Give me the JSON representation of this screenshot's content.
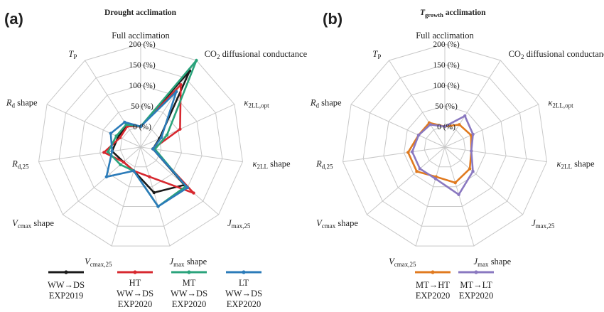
{
  "panels": [
    {
      "label": "(a)",
      "title": "Drought acclimation",
      "title_italic": ""
    },
    {
      "label": "(b)",
      "title": " acclimation",
      "title_italic": "T",
      "title_sub": "growth"
    }
  ],
  "axes_labels": [
    {
      "main": "Full acclimation"
    },
    {
      "main": "CO",
      "sub": "2",
      "rest": " diffusional conductance"
    },
    {
      "italic": "κ",
      "sub": "2LL,opt"
    },
    {
      "italic": "κ",
      "sub": "2LL",
      "rest": " shape"
    },
    {
      "italic": "J",
      "sub": "max,25"
    },
    {
      "italic": "J",
      "sub": "max",
      "rest": " shape"
    },
    {
      "italic": "V",
      "sub": "cmax,25"
    },
    {
      "italic": "V",
      "sub": "cmax",
      "rest": " shape"
    },
    {
      "italic": "R",
      "sub": "d,25"
    },
    {
      "italic": "R",
      "sub": "d",
      "rest": " shape"
    },
    {
      "italic": "T",
      "sub": "P"
    }
  ],
  "tick_labels": [
    "0 (%)",
    "50 (%)",
    "100 (%)",
    "150 (%)",
    "200 (%)"
  ],
  "legend": [
    {
      "panel": 0,
      "line1": "",
      "line2": "WW→DS",
      "line3": "EXP2019",
      "color": "#1a1a1a"
    },
    {
      "panel": 0,
      "line1": "HT",
      "line2": "WW→DS",
      "line3": "EXP2020",
      "color": "#d7282f"
    },
    {
      "panel": 0,
      "line1": "MT",
      "line2": "WW→DS",
      "line3": "EXP2020",
      "color": "#2aa37b"
    },
    {
      "panel": 0,
      "line1": "LT",
      "line2": "WW→DS",
      "line3": "EXP2020",
      "color": "#2b7bb9"
    },
    {
      "panel": 1,
      "line1": "",
      "line2": "MT→HT",
      "line3": "EXP2020",
      "color": "#e07a1f"
    },
    {
      "panel": 1,
      "line1": "",
      "line2": "MT→LT",
      "line3": "EXP2020",
      "color": "#8a78c0"
    }
  ],
  "chart_data": [
    {
      "type": "radar",
      "title": "Drought acclimation",
      "categories": [
        "Full acclimation",
        "CO2 diffusional conductance",
        "κ2LL,opt",
        "κ2LL shape",
        "Jmax,25",
        "Jmax shape",
        "Vcmax,25",
        "Vcmax shape",
        "Rd,25",
        "Rd shape",
        "TP"
      ],
      "rlim": [
        -50,
        200
      ],
      "rticks": [
        0,
        50,
        100,
        150,
        200
      ],
      "grid": true,
      "series": [
        {
          "name": "WW→DS EXP2019",
          "color": "#1a1a1a",
          "values": [
            0,
            170,
            0,
            -20,
            90,
            65,
            10,
            5,
            20,
            10,
            12
          ]
        },
        {
          "name": "HT WW→DS EXP2020",
          "color": "#d7282f",
          "values": [
            0,
            130,
            55,
            -20,
            120,
            25,
            10,
            5,
            40,
            5,
            10
          ]
        },
        {
          "name": "MT WW→DS EXP2020",
          "color": "#2aa37b",
          "values": [
            0,
            200,
            20,
            -15,
            95,
            100,
            10,
            15,
            30,
            15,
            15
          ]
        },
        {
          "name": "LT WW→DS EXP2020",
          "color": "#2b7bb9",
          "values": [
            0,
            110,
            5,
            -20,
            100,
            100,
            10,
            60,
            20,
            30,
            22
          ]
        }
      ]
    },
    {
      "type": "radar",
      "title": "Tgrowth acclimation",
      "categories": [
        "Full acclimation",
        "CO2 diffusional conductance",
        "κ2LL,opt",
        "κ2LL shape",
        "Jmax,25",
        "Jmax shape",
        "Vcmax,25",
        "Vcmax shape",
        "Rd,25",
        "Rd shape",
        "TP"
      ],
      "rlim": [
        -50,
        200
      ],
      "rticks": [
        0,
        50,
        100,
        150,
        200
      ],
      "grid": true,
      "series": [
        {
          "name": "MT→HT EXP2020",
          "color": "#e07a1f",
          "values": [
            0,
            15,
            20,
            15,
            30,
            40,
            25,
            40,
            40,
            20,
            20
          ]
        },
        {
          "name": "MT→LT EXP2020",
          "color": "#8a78c0",
          "values": [
            0,
            40,
            25,
            15,
            40,
            70,
            30,
            30,
            30,
            20,
            15
          ]
        }
      ]
    }
  ]
}
